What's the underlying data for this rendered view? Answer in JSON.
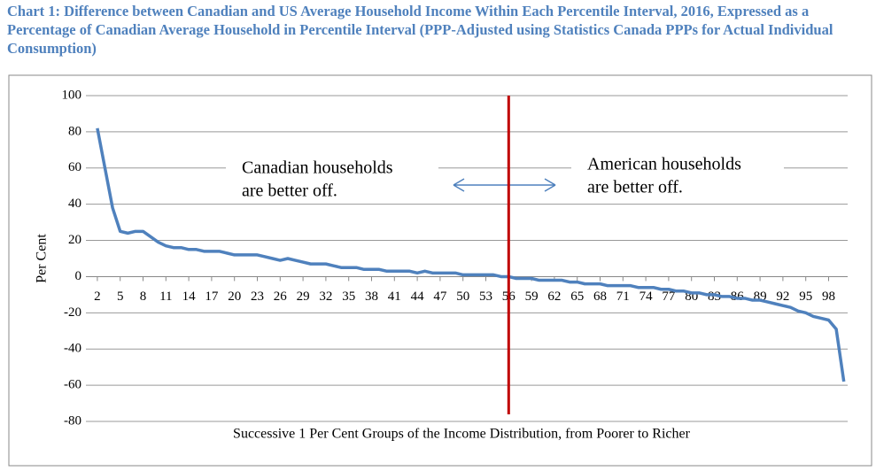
{
  "chart_data": {
    "type": "line",
    "title": "Chart 1: Difference between Canadian and US Average Household Income Within Each Percentile Interval, 2016, Expressed as a Percentage of Canadian Average Household in Percentile Interval (PPP-Adjusted using Statistics Canada PPPs for Actual Individual Consumption)",
    "x_label": "Successive 1 Per Cent Groups of the Income Distribution, from Poorer to Richer",
    "y_label": "Per Cent",
    "x": [
      2,
      3,
      4,
      5,
      6,
      7,
      8,
      9,
      10,
      11,
      12,
      13,
      14,
      15,
      16,
      17,
      18,
      19,
      20,
      21,
      22,
      23,
      24,
      25,
      26,
      27,
      28,
      29,
      30,
      31,
      32,
      33,
      34,
      35,
      36,
      37,
      38,
      39,
      40,
      41,
      42,
      43,
      44,
      45,
      46,
      47,
      48,
      49,
      50,
      51,
      52,
      53,
      54,
      55,
      56,
      57,
      58,
      59,
      60,
      61,
      62,
      63,
      64,
      65,
      66,
      67,
      68,
      69,
      70,
      71,
      72,
      73,
      74,
      75,
      76,
      77,
      78,
      79,
      80,
      81,
      82,
      83,
      84,
      85,
      86,
      87,
      88,
      89,
      90,
      91,
      92,
      93,
      94,
      95,
      96,
      97,
      98,
      99,
      100
    ],
    "series": [
      {
        "color": "#4f81bd",
        "values": [
          82,
          60,
          38,
          25,
          24,
          25,
          25,
          22,
          19,
          17,
          16,
          16,
          15,
          15,
          14,
          14,
          14,
          13,
          12,
          12,
          12,
          12,
          11,
          10,
          9,
          10,
          9,
          8,
          7,
          7,
          7,
          6,
          5,
          5,
          5,
          4,
          4,
          4,
          3,
          3,
          3,
          3,
          2,
          3,
          2,
          2,
          2,
          2,
          1,
          1,
          1,
          1,
          1,
          0,
          0,
          -1,
          -1,
          -1,
          -2,
          -2,
          -2,
          -2,
          -3,
          -3,
          -4,
          -4,
          -4,
          -5,
          -5,
          -5,
          -5,
          -6,
          -6,
          -6,
          -7,
          -7,
          -8,
          -8,
          -9,
          -9,
          -10,
          -10,
          -11,
          -11,
          -12,
          -12,
          -13,
          -13,
          -14,
          -15,
          -16,
          -17,
          -19,
          -20,
          -22,
          -23,
          -24,
          -29,
          -58
        ]
      }
    ],
    "xlim": [
      0.5,
      100.5
    ],
    "xticks": [
      2,
      5,
      8,
      11,
      14,
      17,
      20,
      23,
      26,
      29,
      32,
      35,
      38,
      41,
      44,
      47,
      50,
      53,
      56,
      59,
      62,
      65,
      68,
      71,
      74,
      77,
      80,
      83,
      86,
      89,
      92,
      95,
      98
    ],
    "ylim": [
      -80,
      100
    ],
    "yticks": [
      -80,
      -60,
      -40,
      -20,
      0,
      20,
      40,
      60,
      80,
      100
    ],
    "grid": true,
    "reference_line": {
      "x": 56,
      "color": "#c00000"
    },
    "annotations": [
      {
        "lines": [
          "Canadian households",
          "are better off."
        ]
      },
      {
        "lines": [
          "American households",
          "are better off."
        ]
      }
    ]
  }
}
